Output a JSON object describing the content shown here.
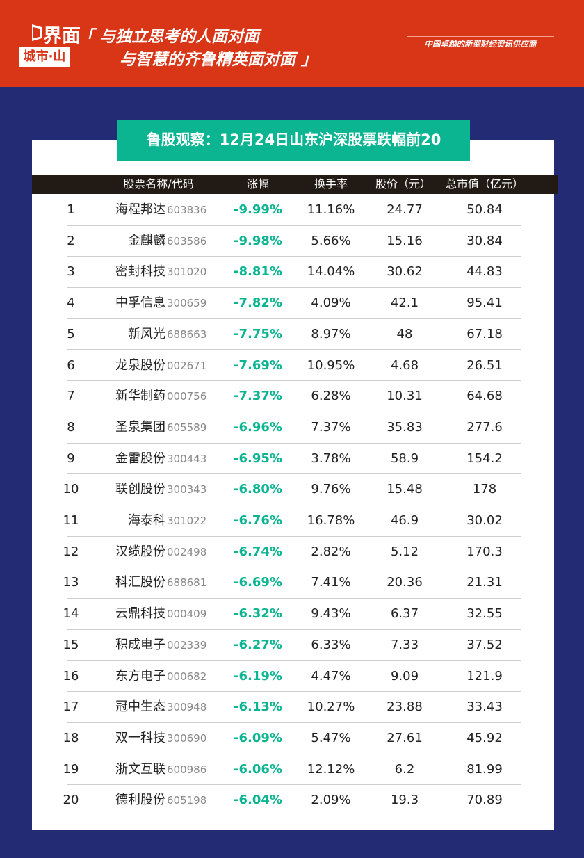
{
  "header": {
    "logo_text": "界面",
    "city_label": "城市·山东",
    "slogan_line1": "「 与独立思考的人面对面",
    "slogan_line2": "与智慧的齐鲁精英面对面 」",
    "tagline": "中国卓越的新型财经资讯供应商"
  },
  "title": "鲁股观察：12月24日山东沪深股票跌幅前20",
  "columns": [
    "股票名称/代码",
    "涨幅",
    "换手率",
    "股价（元）",
    "总市值（亿元）"
  ],
  "colors": {
    "header_red": "#d93618",
    "background_navy": "#232b74",
    "accent_green": "#0bb592"
  },
  "rows": [
    {
      "rank": "1",
      "name": "海程邦达",
      "code": "603836",
      "change": "-9.99%",
      "turnover": "11.16%",
      "price": "24.77",
      "cap": "50.84"
    },
    {
      "rank": "2",
      "name": "金麒麟",
      "code": "603586",
      "change": "-9.98%",
      "turnover": "5.66%",
      "price": "15.16",
      "cap": "30.84"
    },
    {
      "rank": "3",
      "name": "密封科技",
      "code": "301020",
      "change": "-8.81%",
      "turnover": "14.04%",
      "price": "30.62",
      "cap": "44.83"
    },
    {
      "rank": "4",
      "name": "中孚信息",
      "code": "300659",
      "change": "-7.82%",
      "turnover": "4.09%",
      "price": "42.1",
      "cap": "95.41"
    },
    {
      "rank": "5",
      "name": "新风光",
      "code": "688663",
      "change": "-7.75%",
      "turnover": "8.97%",
      "price": "48",
      "cap": "67.18"
    },
    {
      "rank": "6",
      "name": "龙泉股份",
      "code": "002671",
      "change": "-7.69%",
      "turnover": "10.95%",
      "price": "4.68",
      "cap": "26.51"
    },
    {
      "rank": "7",
      "name": "新华制药",
      "code": "000756",
      "change": "-7.37%",
      "turnover": "6.28%",
      "price": "10.31",
      "cap": "64.68"
    },
    {
      "rank": "8",
      "name": "圣泉集团",
      "code": "605589",
      "change": "-6.96%",
      "turnover": "7.37%",
      "price": "35.83",
      "cap": "277.6"
    },
    {
      "rank": "9",
      "name": "金雷股份",
      "code": "300443",
      "change": "-6.95%",
      "turnover": "3.78%",
      "price": "58.9",
      "cap": "154.2"
    },
    {
      "rank": "10",
      "name": "联创股份",
      "code": "300343",
      "change": "-6.80%",
      "turnover": "9.76%",
      "price": "15.48",
      "cap": "178"
    },
    {
      "rank": "11",
      "name": "海泰科",
      "code": "301022",
      "change": "-6.76%",
      "turnover": "16.78%",
      "price": "46.9",
      "cap": "30.02"
    },
    {
      "rank": "12",
      "name": "汉缆股份",
      "code": "002498",
      "change": "-6.74%",
      "turnover": "2.82%",
      "price": "5.12",
      "cap": "170.3"
    },
    {
      "rank": "13",
      "name": "科汇股份",
      "code": "688681",
      "change": "-6.69%",
      "turnover": "7.41%",
      "price": "20.36",
      "cap": "21.31"
    },
    {
      "rank": "14",
      "name": "云鼎科技",
      "code": "000409",
      "change": "-6.32%",
      "turnover": "9.43%",
      "price": "6.37",
      "cap": "32.55"
    },
    {
      "rank": "15",
      "name": "积成电子",
      "code": "002339",
      "change": "-6.27%",
      "turnover": "6.33%",
      "price": "7.33",
      "cap": "37.52"
    },
    {
      "rank": "16",
      "name": "东方电子",
      "code": "000682",
      "change": "-6.19%",
      "turnover": "4.47%",
      "price": "9.09",
      "cap": "121.9"
    },
    {
      "rank": "17",
      "name": "冠中生态",
      "code": "300948",
      "change": "-6.13%",
      "turnover": "10.27%",
      "price": "23.88",
      "cap": "33.43"
    },
    {
      "rank": "18",
      "name": "双一科技",
      "code": "300690",
      "change": "-6.09%",
      "turnover": "5.47%",
      "price": "27.61",
      "cap": "45.92"
    },
    {
      "rank": "19",
      "name": "浙文互联",
      "code": "600986",
      "change": "-6.06%",
      "turnover": "12.12%",
      "price": "6.2",
      "cap": "81.99"
    },
    {
      "rank": "20",
      "name": "德利股份",
      "code": "605198",
      "change": "-6.04%",
      "turnover": "2.09%",
      "price": "19.3",
      "cap": "70.89"
    }
  ]
}
